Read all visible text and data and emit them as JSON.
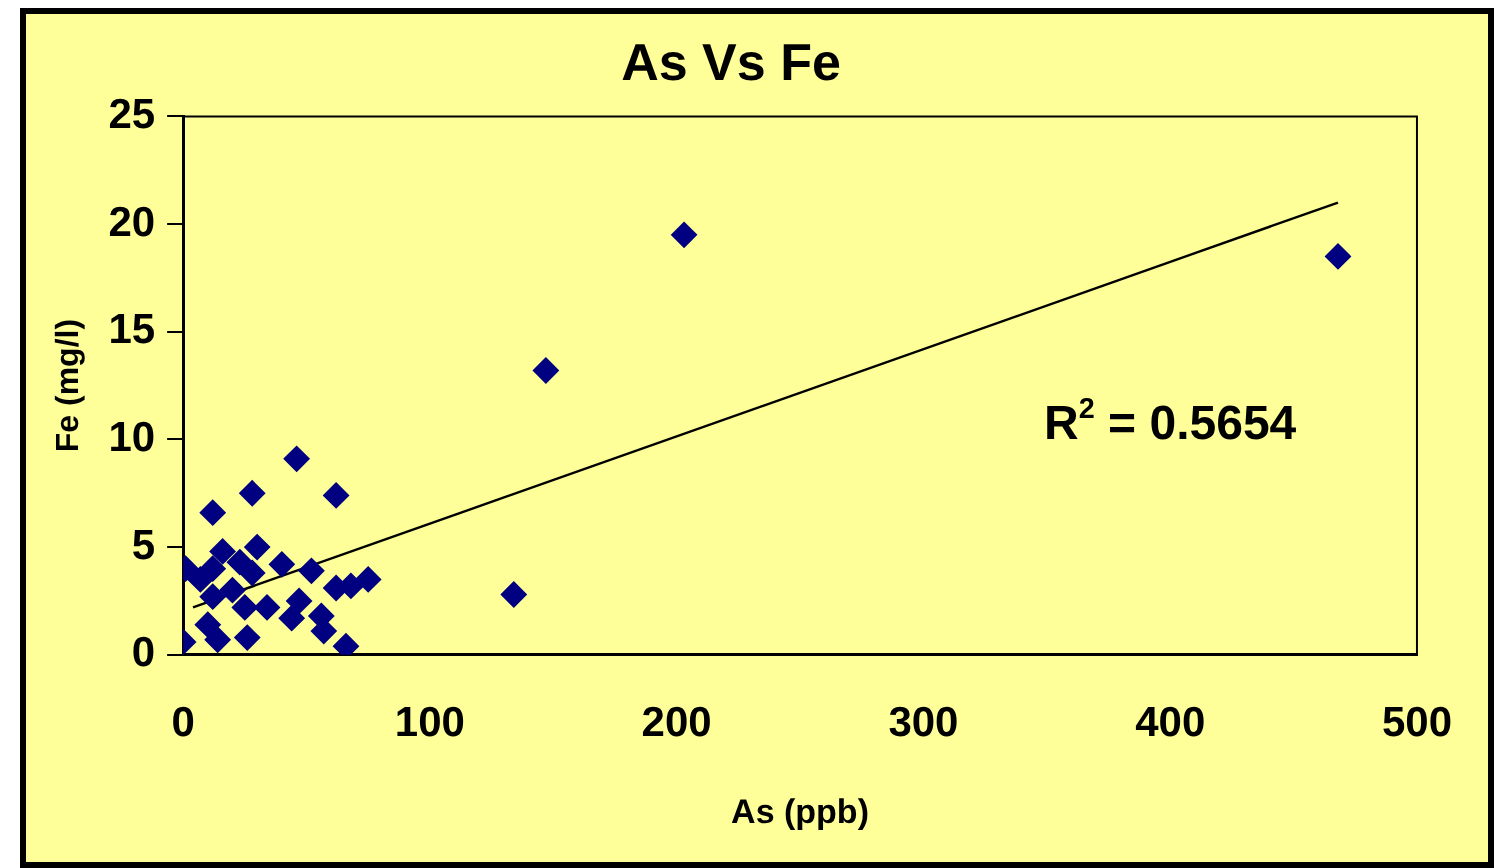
{
  "chart_data": {
    "type": "scatter",
    "title": "As Vs Fe",
    "xlabel": "As (ppb)",
    "ylabel": "Fe (mg/l)",
    "annotations": [
      "R$^{2}$ = 0.5654"
    ],
    "xlim": [
      0,
      500
    ],
    "xticks": [
      0,
      100,
      200,
      300,
      400,
      500
    ],
    "ylim": [
      0,
      25
    ],
    "yticks": [
      0,
      5,
      10,
      15,
      20,
      25
    ],
    "grid": false,
    "legend": false,
    "series": [
      {
        "type": "scatter",
        "color": "#000080",
        "marker": "diamond",
        "x": [
          0,
          1,
          12,
          28,
          46,
          62,
          30,
          16,
          40,
          52,
          75,
          68,
          62,
          56,
          57,
          66,
          44,
          47,
          34,
          26,
          14,
          10,
          7,
          12,
          20,
          23,
          12,
          28,
          25,
          134,
          147,
          203,
          468
        ],
        "values": [
          0.6,
          4.0,
          6.6,
          7.5,
          9.1,
          7.4,
          5.0,
          4.8,
          4.2,
          3.9,
          3.5,
          3.2,
          3.1,
          1.8,
          1.1,
          0.4,
          1.7,
          2.5,
          2.2,
          0.8,
          0.7,
          1.4,
          3.5,
          2.7,
          3.0,
          4.3,
          4.0,
          3.8,
          2.2,
          2.8,
          13.2,
          19.5,
          18.5
        ]
      },
      {
        "type": "line",
        "color": "#000000",
        "marker": "none",
        "x": [
          4,
          468
        ],
        "values": [
          2.2,
          21.0
        ]
      }
    ]
  }
}
